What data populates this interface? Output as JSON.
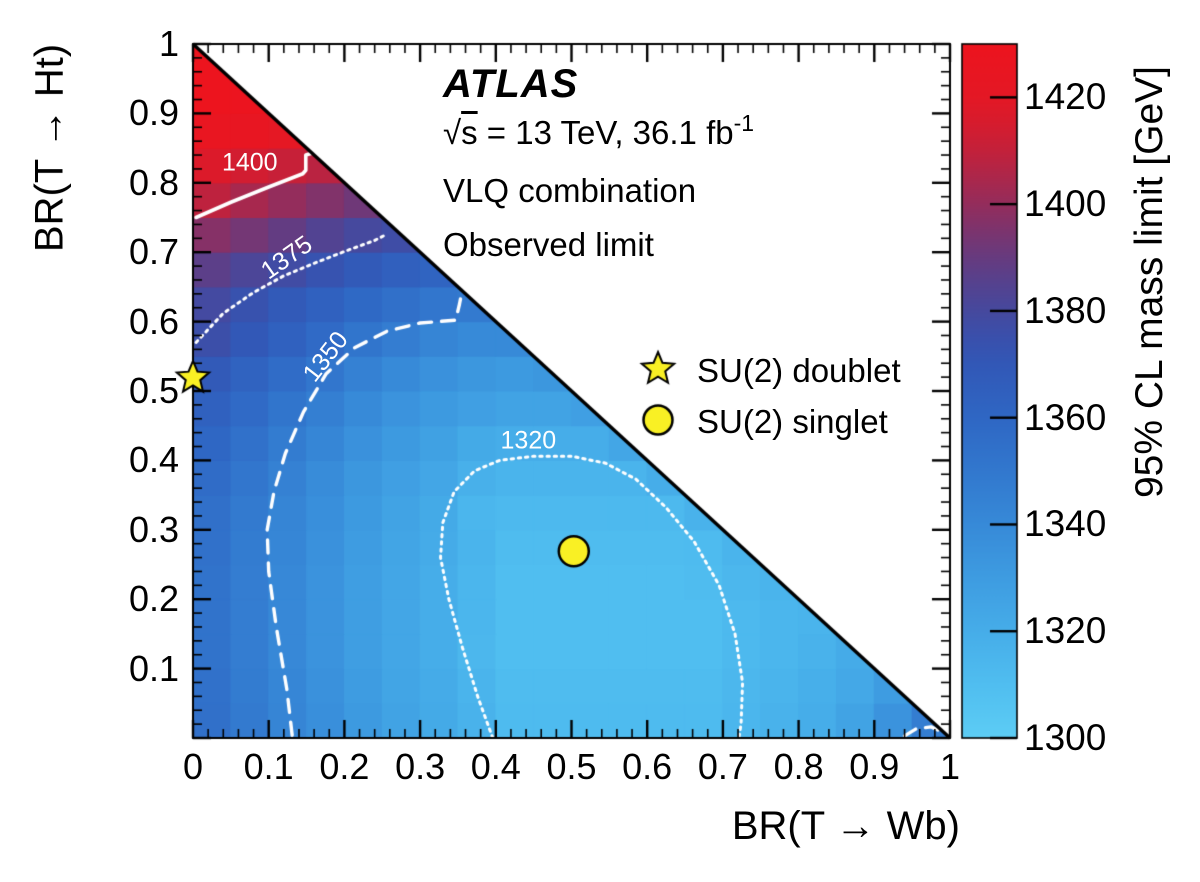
{
  "header": {
    "experiment": "ATLAS",
    "sqrt": "√",
    "s": "s",
    "energy_rest": " = 13 TeV, 36.1 fb",
    "lumi_sup": "-1",
    "line3": "VLQ combination",
    "line4": "Observed limit"
  },
  "legend": [
    {
      "label": "SU(2) doublet",
      "marker": "star"
    },
    {
      "label": "SU(2) singlet",
      "marker": "circle"
    }
  ],
  "marker_color": "#F9F024",
  "chart_data": {
    "type": "heatmap",
    "title": "ATLAS VLQ combination observed 95% CL mass limit",
    "x_axis": {
      "label": "BR(T → Wb)",
      "min": 0,
      "max": 1,
      "major_ticks": [
        0,
        0.1,
        0.2,
        0.3,
        0.4,
        0.5,
        0.6,
        0.7,
        0.8,
        0.9,
        1
      ],
      "tick_labels": [
        "0",
        "0.1",
        "0.2",
        "0.3",
        "0.4",
        "0.5",
        "0.6",
        "0.7",
        "0.8",
        "0.9",
        "1"
      ],
      "minor_step": 0.02
    },
    "y_axis": {
      "label": "BR(T → Ht)",
      "min": 0,
      "max": 1,
      "major_ticks": [
        0.1,
        0.2,
        0.3,
        0.4,
        0.5,
        0.6,
        0.7,
        0.8,
        0.9,
        1
      ],
      "tick_labels": [
        "0.1",
        "0.2",
        "0.3",
        "0.4",
        "0.5",
        "0.6",
        "0.7",
        "0.8",
        "0.9",
        "1"
      ],
      "minor_step": 0.02
    },
    "z_axis": {
      "label": "95% CL mass limit [GeV]",
      "min": 1300,
      "max": 1430,
      "ticks": [
        1300,
        1320,
        1340,
        1360,
        1380,
        1400,
        1420
      ],
      "tick_labels": [
        "1300",
        "1320",
        "1340",
        "1360",
        "1380",
        "1400",
        "1420"
      ]
    },
    "domain": "x + y <= 1 (lower triangle)",
    "grid": {
      "x_step": 0.05,
      "y_step": 0.05,
      "order": "rows bottom to top, cells left to right",
      "rows": [
        [
          1355,
          1349,
          1343,
          1337,
          1331,
          1326,
          1322,
          1317,
          1312,
          1312,
          1312,
          1312,
          1312,
          1312,
          1315,
          1317,
          1320,
          1326,
          1335,
          1347
        ],
        [
          1354,
          1348,
          1342,
          1336,
          1330,
          1325,
          1321,
          1316,
          1311,
          1311,
          1311,
          1311,
          1311,
          1311,
          1314,
          1316,
          1319,
          1323,
          1330
        ],
        [
          1353,
          1347,
          1341,
          1335,
          1329,
          1324,
          1320,
          1314,
          1310,
          1310,
          1310,
          1310,
          1310,
          1310,
          1313,
          1315,
          1317,
          1321
        ],
        [
          1353,
          1347,
          1341,
          1335,
          1329,
          1324,
          1320,
          1315,
          1310,
          1310,
          1310,
          1310,
          1310,
          1310,
          1313,
          1315,
          1316
        ],
        [
          1353,
          1347,
          1341,
          1335,
          1329,
          1324,
          1320,
          1315,
          1310,
          1310,
          1310,
          1310,
          1310,
          1311,
          1314,
          1316
        ],
        [
          1354,
          1348,
          1342,
          1336,
          1330,
          1325,
          1321,
          1316,
          1311,
          1311,
          1311,
          1311,
          1311,
          1312,
          1316
        ],
        [
          1355,
          1349,
          1343,
          1337,
          1331,
          1326,
          1322,
          1315,
          1313,
          1313,
          1313,
          1313,
          1313,
          1317
        ],
        [
          1357,
          1351,
          1345,
          1339,
          1333,
          1328,
          1324,
          1318,
          1316,
          1316,
          1316,
          1316,
          1320
        ],
        [
          1360,
          1354,
          1348,
          1342,
          1336,
          1331,
          1327,
          1322,
          1320,
          1320,
          1320,
          1324
        ],
        [
          1364,
          1358,
          1352,
          1346,
          1340,
          1335,
          1331,
          1328,
          1326,
          1326,
          1328
        ],
        [
          1369,
          1363,
          1357,
          1351,
          1345,
          1340,
          1336,
          1333,
          1331,
          1333
        ],
        [
          1376,
          1370,
          1364,
          1358,
          1352,
          1347,
          1343,
          1340,
          1340
        ],
        [
          1379,
          1374,
          1369,
          1364,
          1359,
          1355,
          1351,
          1349
        ],
        [
          1387,
          1382,
          1378,
          1373,
          1369,
          1365,
          1362
        ],
        [
          1397,
          1393,
          1389,
          1384,
          1380,
          1377
        ],
        [
          1409,
          1404,
          1400,
          1396,
          1392
        ],
        [
          1417,
          1414,
          1411,
          1408
        ],
        [
          1426,
          1424,
          1421
        ],
        [
          1431,
          1429
        ],
        [
          1432
        ]
      ]
    },
    "contours": [
      {
        "level": 1400,
        "label": "1400",
        "style": "solid",
        "label_pos": [
          0.075,
          0.828
        ],
        "label_rot": 0,
        "points": [
          [
            0.004,
            0.75
          ],
          [
            0.05,
            0.772
          ],
          [
            0.1,
            0.794
          ],
          [
            0.145,
            0.813
          ],
          [
            0.149,
            0.818
          ],
          [
            0.149,
            0.84
          ],
          [
            0.158,
            0.843
          ]
        ]
      },
      {
        "level": 1375,
        "label": "1375",
        "style": "dotted",
        "label_pos": [
          0.124,
          0.692
        ],
        "label_rot": -35,
        "points": [
          [
            0.004,
            0.57
          ],
          [
            0.04,
            0.612
          ],
          [
            0.08,
            0.642
          ],
          [
            0.12,
            0.666
          ],
          [
            0.16,
            0.684
          ],
          [
            0.2,
            0.701
          ],
          [
            0.24,
            0.717
          ],
          [
            0.256,
            0.726
          ]
        ]
      },
      {
        "level": 1350,
        "label": "1350",
        "style": "dashed",
        "label_pos": [
          0.176,
          0.549
        ],
        "label_rot": -52,
        "points": [
          [
            0.131,
            0.004
          ],
          [
            0.124,
            0.07
          ],
          [
            0.11,
            0.16
          ],
          [
            0.1,
            0.24
          ],
          [
            0.098,
            0.3
          ],
          [
            0.107,
            0.355
          ],
          [
            0.122,
            0.41
          ],
          [
            0.146,
            0.47
          ],
          [
            0.176,
            0.525
          ],
          [
            0.213,
            0.562
          ],
          [
            0.256,
            0.586
          ],
          [
            0.3,
            0.598
          ],
          [
            0.347,
            0.602
          ],
          [
            0.352,
            0.625
          ],
          [
            0.356,
            0.647
          ]
        ]
      },
      {
        "level": 1350,
        "label": "",
        "style": "dashed",
        "label_pos": null,
        "label_rot": 0,
        "points": [
          [
            0.94,
            0.003
          ],
          [
            0.955,
            0.013
          ],
          [
            0.975,
            0.016
          ],
          [
            0.995,
            0.006
          ]
        ]
      },
      {
        "level": 1320,
        "label": "1320",
        "style": "dotted",
        "label_pos": [
          0.443,
          0.428
        ],
        "label_rot": 0,
        "points": [
          [
            0.396,
            0.0
          ],
          [
            0.376,
            0.06
          ],
          [
            0.356,
            0.13
          ],
          [
            0.338,
            0.2
          ],
          [
            0.327,
            0.26
          ],
          [
            0.33,
            0.31
          ],
          [
            0.345,
            0.355
          ],
          [
            0.372,
            0.385
          ],
          [
            0.405,
            0.4
          ],
          [
            0.45,
            0.406
          ],
          [
            0.5,
            0.406
          ],
          [
            0.545,
            0.396
          ],
          [
            0.585,
            0.373
          ],
          [
            0.625,
            0.332
          ],
          [
            0.662,
            0.283
          ],
          [
            0.695,
            0.22
          ],
          [
            0.716,
            0.15
          ],
          [
            0.726,
            0.08
          ],
          [
            0.724,
            0.02
          ],
          [
            0.721,
            0.0
          ]
        ]
      }
    ],
    "markers": [
      {
        "name": "SU(2) doublet",
        "shape": "star",
        "x": 0.0,
        "y": 0.519
      },
      {
        "name": "SU(2) singlet",
        "shape": "circle",
        "x": 0.503,
        "y": 0.269
      }
    ],
    "colormap_stops": [
      [
        1300,
        "#5DCDF5"
      ],
      [
        1310,
        "#50BEF0"
      ],
      [
        1320,
        "#46ADE9"
      ],
      [
        1330,
        "#3E9CE1"
      ],
      [
        1340,
        "#378AD8"
      ],
      [
        1350,
        "#3278CE"
      ],
      [
        1360,
        "#2F67C4"
      ],
      [
        1370,
        "#3258B7"
      ],
      [
        1375,
        "#3A50AC"
      ],
      [
        1380,
        "#46499E"
      ],
      [
        1385,
        "#55428F"
      ],
      [
        1390,
        "#673B7F"
      ],
      [
        1395,
        "#7C346E"
      ],
      [
        1400,
        "#942D5C"
      ],
      [
        1405,
        "#AC274B"
      ],
      [
        1410,
        "#C3213B"
      ],
      [
        1415,
        "#D61C2E"
      ],
      [
        1420,
        "#E41825"
      ],
      [
        1430,
        "#ED141E"
      ]
    ]
  }
}
